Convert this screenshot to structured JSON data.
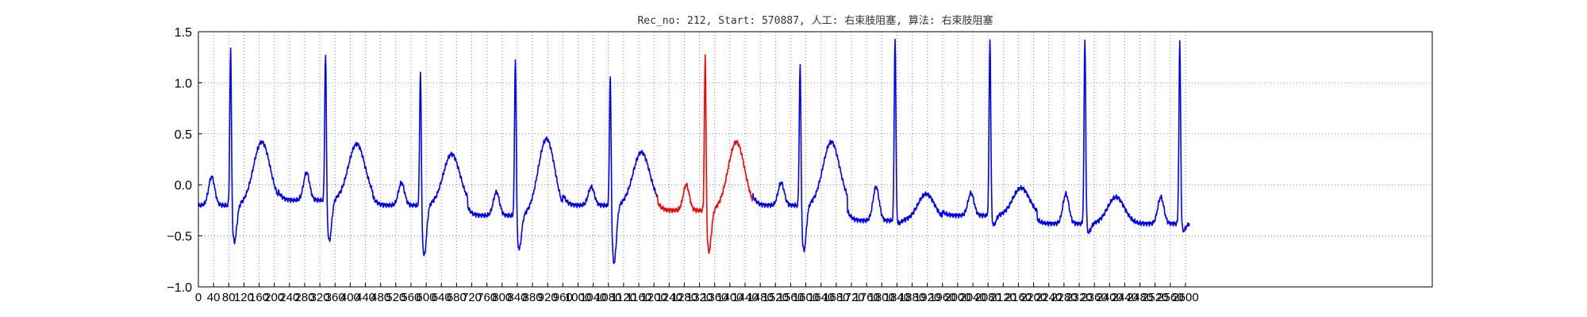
{
  "chart_data": {
    "type": "line",
    "title": "Rec_no: 212, Start: 570887, 人工: 右束肢阻塞, 算法: 右束肢阻塞",
    "xlabel": "",
    "ylabel": "",
    "xlim": [
      0,
      3250
    ],
    "ylim": [
      -1.0,
      1.5
    ],
    "yticks": [
      -1.0,
      -0.5,
      0.0,
      0.5,
      1.0,
      1.5
    ],
    "ytick_labels": [
      "−1.0",
      "−0.5",
      "0.0",
      "0.5",
      "1.0",
      "1.5"
    ],
    "xticks": [
      0,
      40,
      80,
      120,
      160,
      200,
      240,
      280,
      320,
      360,
      400,
      440,
      480,
      520,
      560,
      600,
      640,
      680,
      720,
      760,
      800,
      840,
      880,
      920,
      960,
      1000,
      1040,
      1080,
      1120,
      1160,
      1200,
      1240,
      1280,
      1320,
      1360,
      1400,
      1440,
      1480,
      1520,
      1560,
      1600,
      1640,
      1680,
      1720,
      1760,
      1800,
      1840,
      1880,
      1920,
      1960,
      2000,
      2040,
      2080,
      2120,
      2160,
      2200,
      2240,
      2280,
      2320,
      2360,
      2400,
      2440,
      2480,
      2520,
      2560,
      2600
    ],
    "grid": true,
    "beats": [
      {
        "r_x": 85,
        "r_y": 1.42,
        "s_y": -0.58,
        "t_y": 0.42,
        "p_y": 0.08,
        "base": -0.2,
        "label": "normal"
      },
      {
        "r_x": 335,
        "r_y": 1.38,
        "s_y": -0.57,
        "t_y": 0.4,
        "p_y": 0.12,
        "base": -0.15,
        "label": "normal"
      },
      {
        "r_x": 585,
        "r_y": 1.22,
        "s_y": -0.72,
        "t_y": 0.3,
        "p_y": 0.02,
        "base": -0.2,
        "label": "normal"
      },
      {
        "r_x": 835,
        "r_y": 1.32,
        "s_y": -0.65,
        "t_y": 0.45,
        "p_y": -0.07,
        "base": -0.3,
        "label": "normal"
      },
      {
        "r_x": 1085,
        "r_y": 1.2,
        "s_y": -0.8,
        "t_y": 0.32,
        "p_y": -0.02,
        "base": -0.2,
        "label": "normal"
      },
      {
        "r_x": 1335,
        "r_y": 1.35,
        "s_y": -0.68,
        "t_y": 0.42,
        "p_y": 0.0,
        "base": -0.25,
        "label": "highlighted"
      },
      {
        "r_x": 1585,
        "r_y": 1.3,
        "s_y": -0.67,
        "t_y": 0.42,
        "p_y": 0.02,
        "base": -0.2,
        "label": "normal"
      },
      {
        "r_x": 1835,
        "r_y": 1.44,
        "s_y": -0.38,
        "t_y": -0.09,
        "p_y": -0.02,
        "base": -0.35,
        "label": "normal"
      },
      {
        "r_x": 2085,
        "r_y": 1.44,
        "s_y": -0.4,
        "t_y": -0.03,
        "p_y": -0.08,
        "base": -0.3,
        "label": "normal"
      },
      {
        "r_x": 2335,
        "r_y": 1.45,
        "s_y": -0.47,
        "t_y": -0.12,
        "p_y": -0.09,
        "base": -0.38,
        "label": "normal"
      },
      {
        "r_x": 2585,
        "r_y": 1.41,
        "s_y": -0.45,
        "t_y": null,
        "p_y": -0.12,
        "base": -0.38,
        "label": "normal"
      }
    ],
    "x_end": 2610,
    "series_colors": {
      "normal": "#0000ff",
      "highlighted": "#ff0000"
    },
    "highlight_range": [
      1210,
      1460
    ]
  }
}
